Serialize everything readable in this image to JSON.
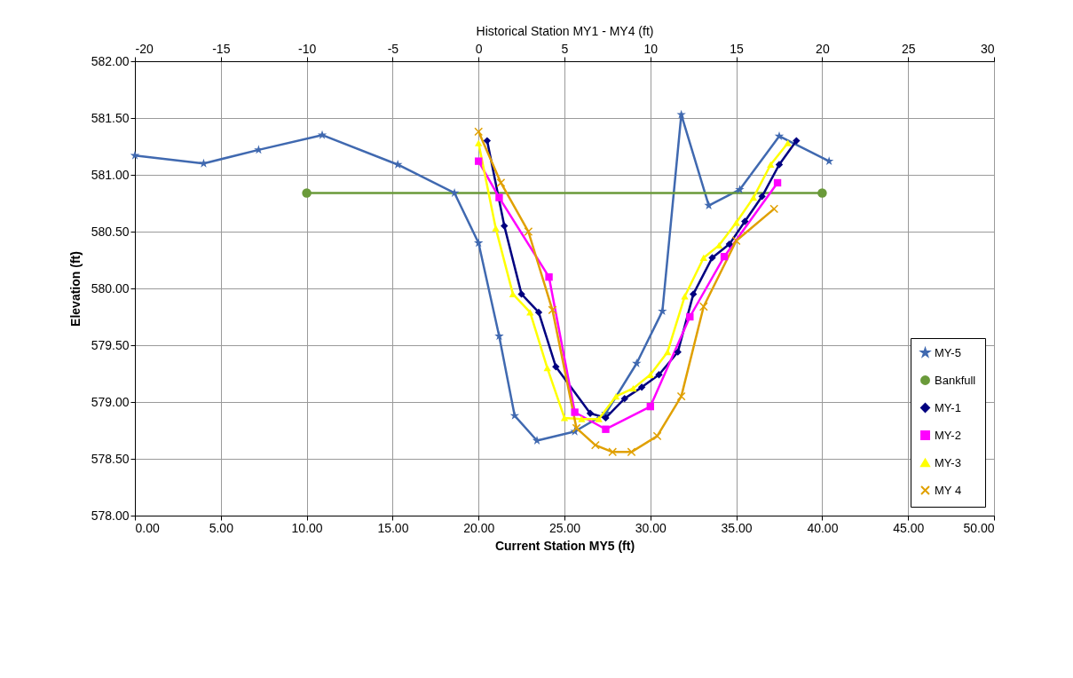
{
  "chart_data": {
    "type": "line",
    "xlabel": "Current Station MY5  (ft)",
    "x2label": "Historical Station MY1 - MY4 (ft)",
    "ylabel": "Elevation (ft)",
    "xlim": [
      0,
      50
    ],
    "xticks": [
      {
        "value": 0,
        "label": "0.00"
      },
      {
        "value": 5,
        "label": "5.00"
      },
      {
        "value": 10,
        "label": "10.00"
      },
      {
        "value": 15,
        "label": "15.00"
      },
      {
        "value": 20,
        "label": "20.00"
      },
      {
        "value": 25,
        "label": "25.00"
      },
      {
        "value": 30,
        "label": "30.00"
      },
      {
        "value": 35,
        "label": "35.00"
      },
      {
        "value": 40,
        "label": "40.00"
      },
      {
        "value": 45,
        "label": "45.00"
      },
      {
        "value": 50,
        "label": "50.00"
      }
    ],
    "x2lim": [
      -20,
      30
    ],
    "x2ticks": [
      -20,
      -15,
      -10,
      -5,
      0,
      5,
      10,
      15,
      20,
      25,
      30
    ],
    "ylim": [
      578,
      582
    ],
    "yticks": [
      {
        "value": 578,
        "label": "578.00"
      },
      {
        "value": 578.5,
        "label": "578.50"
      },
      {
        "value": 579,
        "label": "579.00"
      },
      {
        "value": 579.5,
        "label": "579.50"
      },
      {
        "value": 580,
        "label": "580.00"
      },
      {
        "value": 580.5,
        "label": "580.50"
      },
      {
        "value": 581,
        "label": "581.00"
      },
      {
        "value": 581.5,
        "label": "581.50"
      },
      {
        "value": 582,
        "label": "582.00"
      }
    ],
    "grid": true,
    "legend": "bottom right",
    "series": [
      {
        "name": "MY-5",
        "color": "#4069b0",
        "marker": "star",
        "x": [
          0,
          4.0,
          7.2,
          10.9,
          15.3,
          18.6,
          20.0,
          21.2,
          22.1,
          23.4,
          25.6,
          27.4,
          29.2,
          30.7,
          31.8,
          33.4,
          35.2,
          37.5,
          40.4
        ],
        "values": [
          581.17,
          581.1,
          581.22,
          581.35,
          581.09,
          580.84,
          580.4,
          579.58,
          578.88,
          578.66,
          578.74,
          578.9,
          579.34,
          579.8,
          581.53,
          580.73,
          580.87,
          581.34,
          581.12
        ]
      },
      {
        "name": "Bankfull",
        "color": "#6a9a3a",
        "marker": "circle",
        "x": [
          10,
          40
        ],
        "values": [
          580.84,
          580.84
        ]
      },
      {
        "name": "MY-1",
        "color": "#000080",
        "marker": "diamond",
        "axis": "x2",
        "x": [
          0.5,
          1.5,
          2.5,
          3.5,
          4.5,
          6.5,
          7.4,
          8.5,
          9.5,
          10.5,
          11.6,
          12.5,
          13.6,
          14.6,
          15.5,
          16.5,
          17.5,
          18.5
        ],
        "values": [
          581.3,
          580.55,
          579.95,
          579.79,
          579.31,
          578.9,
          578.86,
          579.03,
          579.13,
          579.24,
          579.44,
          579.95,
          580.27,
          580.39,
          580.59,
          580.81,
          581.09,
          581.3
        ]
      },
      {
        "name": "MY-2",
        "color": "#ff00ff",
        "marker": "square",
        "axis": "x2",
        "x": [
          0,
          1.2,
          4.1,
          5.6,
          7.4,
          10.0,
          12.3,
          14.3,
          17.4
        ],
        "values": [
          581.12,
          580.8,
          580.1,
          578.91,
          578.76,
          578.96,
          579.75,
          580.28,
          580.93
        ]
      },
      {
        "name": "MY-3",
        "color": "#ffff00",
        "marker": "triangle",
        "axis": "x2",
        "x": [
          0,
          1.0,
          2.0,
          3.0,
          4.0,
          5.0,
          6.0,
          7.0,
          8.0,
          9.0,
          10.0,
          11.0,
          12.0,
          13.1,
          14.0,
          15.0,
          16.0,
          17.0,
          18.0
        ],
        "values": [
          581.28,
          580.53,
          579.95,
          579.79,
          579.3,
          578.86,
          578.85,
          578.85,
          579.05,
          579.12,
          579.24,
          579.44,
          579.93,
          580.27,
          580.38,
          580.58,
          580.8,
          581.09,
          581.28
        ]
      },
      {
        "name": "MY 4",
        "color": "#e0a000",
        "marker": "cross",
        "axis": "x2",
        "x": [
          0,
          1.3,
          2.9,
          4.3,
          5.7,
          6.8,
          7.8,
          8.9,
          10.4,
          11.8,
          13.1,
          15.0,
          17.2
        ],
        "values": [
          581.38,
          580.93,
          580.5,
          579.81,
          578.77,
          578.62,
          578.56,
          578.56,
          578.7,
          579.05,
          579.84,
          580.42,
          580.7
        ]
      }
    ]
  }
}
